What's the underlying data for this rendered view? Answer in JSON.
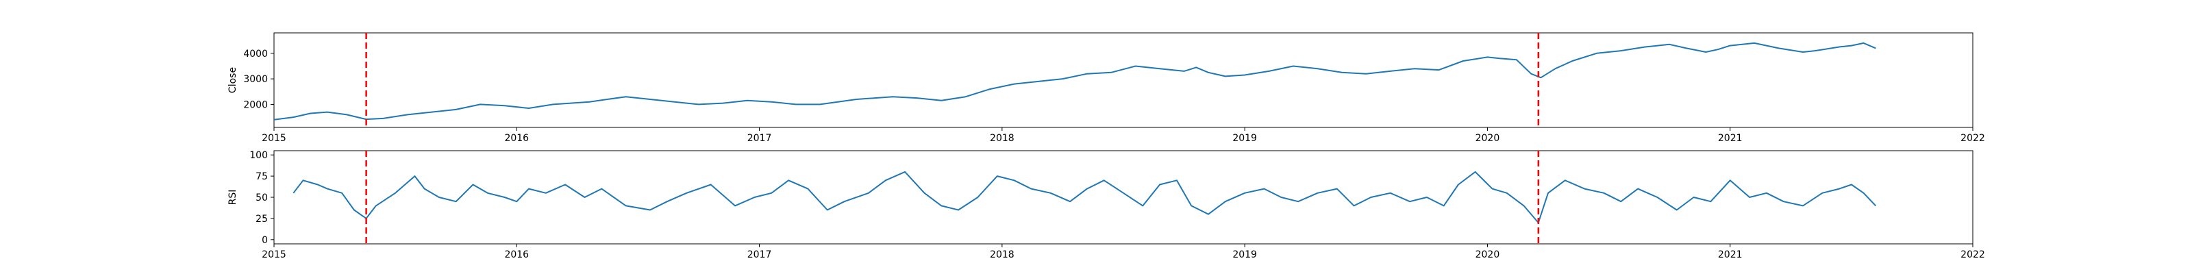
{
  "chart_data": [
    {
      "type": "line",
      "title": "",
      "xlabel": "",
      "ylabel": "Close",
      "xlim": [
        2015,
        2022
      ],
      "ylim": [
        1100,
        4800
      ],
      "x_ticks": [
        "2015",
        "2016",
        "2017",
        "2018",
        "2019",
        "2020",
        "2021",
        "2022"
      ],
      "y_ticks": [
        2000,
        3000,
        4000
      ],
      "grid": false,
      "line_color": "#1f77b4",
      "series": [
        {
          "x": [
            2015.0,
            2015.08,
            2015.15,
            2015.22,
            2015.3,
            2015.38,
            2015.45,
            2015.55,
            2015.65,
            2015.75,
            2015.85,
            2015.95,
            2016.05,
            2016.15,
            2016.3,
            2016.45,
            2016.55,
            2016.65,
            2016.75,
            2016.85,
            2016.95,
            2017.05,
            2017.15,
            2017.25,
            2017.4,
            2017.55,
            2017.65,
            2017.75,
            2017.85,
            2017.95,
            2018.05,
            2018.15,
            2018.25,
            2018.35,
            2018.45,
            2018.55,
            2018.65,
            2018.75,
            2018.8,
            2018.85,
            2018.92,
            2019.0,
            2019.1,
            2019.2,
            2019.3,
            2019.4,
            2019.5,
            2019.6,
            2019.7,
            2019.8,
            2019.9,
            2020.0,
            2020.05,
            2020.12,
            2020.18,
            2020.22,
            2020.28,
            2020.35,
            2020.45,
            2020.55,
            2020.65,
            2020.75,
            2020.82,
            2020.9,
            2020.95,
            2021.0,
            2021.1,
            2021.2,
            2021.3,
            2021.35,
            2021.45,
            2021.5,
            2021.55,
            2021.6
          ],
          "values": [
            1400,
            1500,
            1650,
            1700,
            1600,
            1420,
            1450,
            1600,
            1700,
            1800,
            2000,
            1950,
            1850,
            2000,
            2100,
            2300,
            2200,
            2100,
            2000,
            2050,
            2150,
            2100,
            2000,
            2000,
            2200,
            2300,
            2250,
            2150,
            2300,
            2600,
            2800,
            2900,
            3000,
            3200,
            3250,
            3500,
            3400,
            3300,
            3450,
            3250,
            3100,
            3150,
            3300,
            3500,
            3400,
            3250,
            3200,
            3300,
            3400,
            3350,
            3700,
            3850,
            3800,
            3750,
            3200,
            3050,
            3400,
            3700,
            4000,
            4100,
            4250,
            4350,
            4200,
            4050,
            4150,
            4300,
            4400,
            4200,
            4050,
            4100,
            4250,
            4300,
            4400,
            4200
          ]
        }
      ],
      "vlines": [
        2015.38,
        2020.21
      ],
      "vline_color": "#ff0000"
    },
    {
      "type": "line",
      "title": "",
      "xlabel": "",
      "ylabel": "RSI",
      "xlim": [
        2015,
        2022
      ],
      "ylim": [
        -5,
        105
      ],
      "x_ticks": [
        "2015",
        "2016",
        "2017",
        "2018",
        "2019",
        "2020",
        "2021",
        "2022"
      ],
      "y_ticks": [
        0,
        25,
        50,
        75,
        100
      ],
      "grid": false,
      "line_color": "#1f77b4",
      "series": [
        {
          "x": [
            2015.08,
            2015.12,
            2015.18,
            2015.22,
            2015.28,
            2015.33,
            2015.38,
            2015.42,
            2015.5,
            2015.58,
            2015.62,
            2015.68,
            2015.75,
            2015.82,
            2015.88,
            2015.95,
            2016.0,
            2016.05,
            2016.12,
            2016.2,
            2016.28,
            2016.35,
            2016.45,
            2016.55,
            2016.62,
            2016.7,
            2016.8,
            2016.9,
            2016.98,
            2017.05,
            2017.12,
            2017.2,
            2017.28,
            2017.35,
            2017.45,
            2017.52,
            2017.6,
            2017.68,
            2017.75,
            2017.82,
            2017.9,
            2017.98,
            2018.05,
            2018.12,
            2018.2,
            2018.28,
            2018.35,
            2018.42,
            2018.5,
            2018.58,
            2018.65,
            2018.72,
            2018.78,
            2018.85,
            2018.92,
            2019.0,
            2019.08,
            2019.15,
            2019.22,
            2019.3,
            2019.38,
            2019.45,
            2019.52,
            2019.6,
            2019.68,
            2019.75,
            2019.82,
            2019.88,
            2019.95,
            2020.02,
            2020.08,
            2020.15,
            2020.21,
            2020.25,
            2020.32,
            2020.4,
            2020.48,
            2020.55,
            2020.62,
            2020.7,
            2020.78,
            2020.85,
            2020.92,
            2021.0,
            2021.08,
            2021.15,
            2021.22,
            2021.3,
            2021.38,
            2021.45,
            2021.5,
            2021.55,
            2021.6
          ],
          "values": [
            55,
            70,
            65,
            60,
            55,
            35,
            25,
            40,
            55,
            75,
            60,
            50,
            45,
            65,
            55,
            50,
            45,
            60,
            55,
            65,
            50,
            60,
            40,
            35,
            45,
            55,
            65,
            40,
            50,
            55,
            70,
            60,
            35,
            45,
            55,
            70,
            80,
            55,
            40,
            35,
            50,
            75,
            70,
            60,
            55,
            45,
            60,
            70,
            55,
            40,
            65,
            70,
            40,
            30,
            45,
            55,
            60,
            50,
            45,
            55,
            60,
            40,
            50,
            55,
            45,
            50,
            40,
            65,
            80,
            60,
            55,
            40,
            20,
            55,
            70,
            60,
            55,
            45,
            60,
            50,
            35,
            50,
            45,
            70,
            50,
            55,
            45,
            40,
            55,
            60,
            65,
            55,
            40
          ]
        }
      ],
      "vlines": [
        2015.38,
        2020.21
      ],
      "vline_color": "#ff0000"
    }
  ]
}
